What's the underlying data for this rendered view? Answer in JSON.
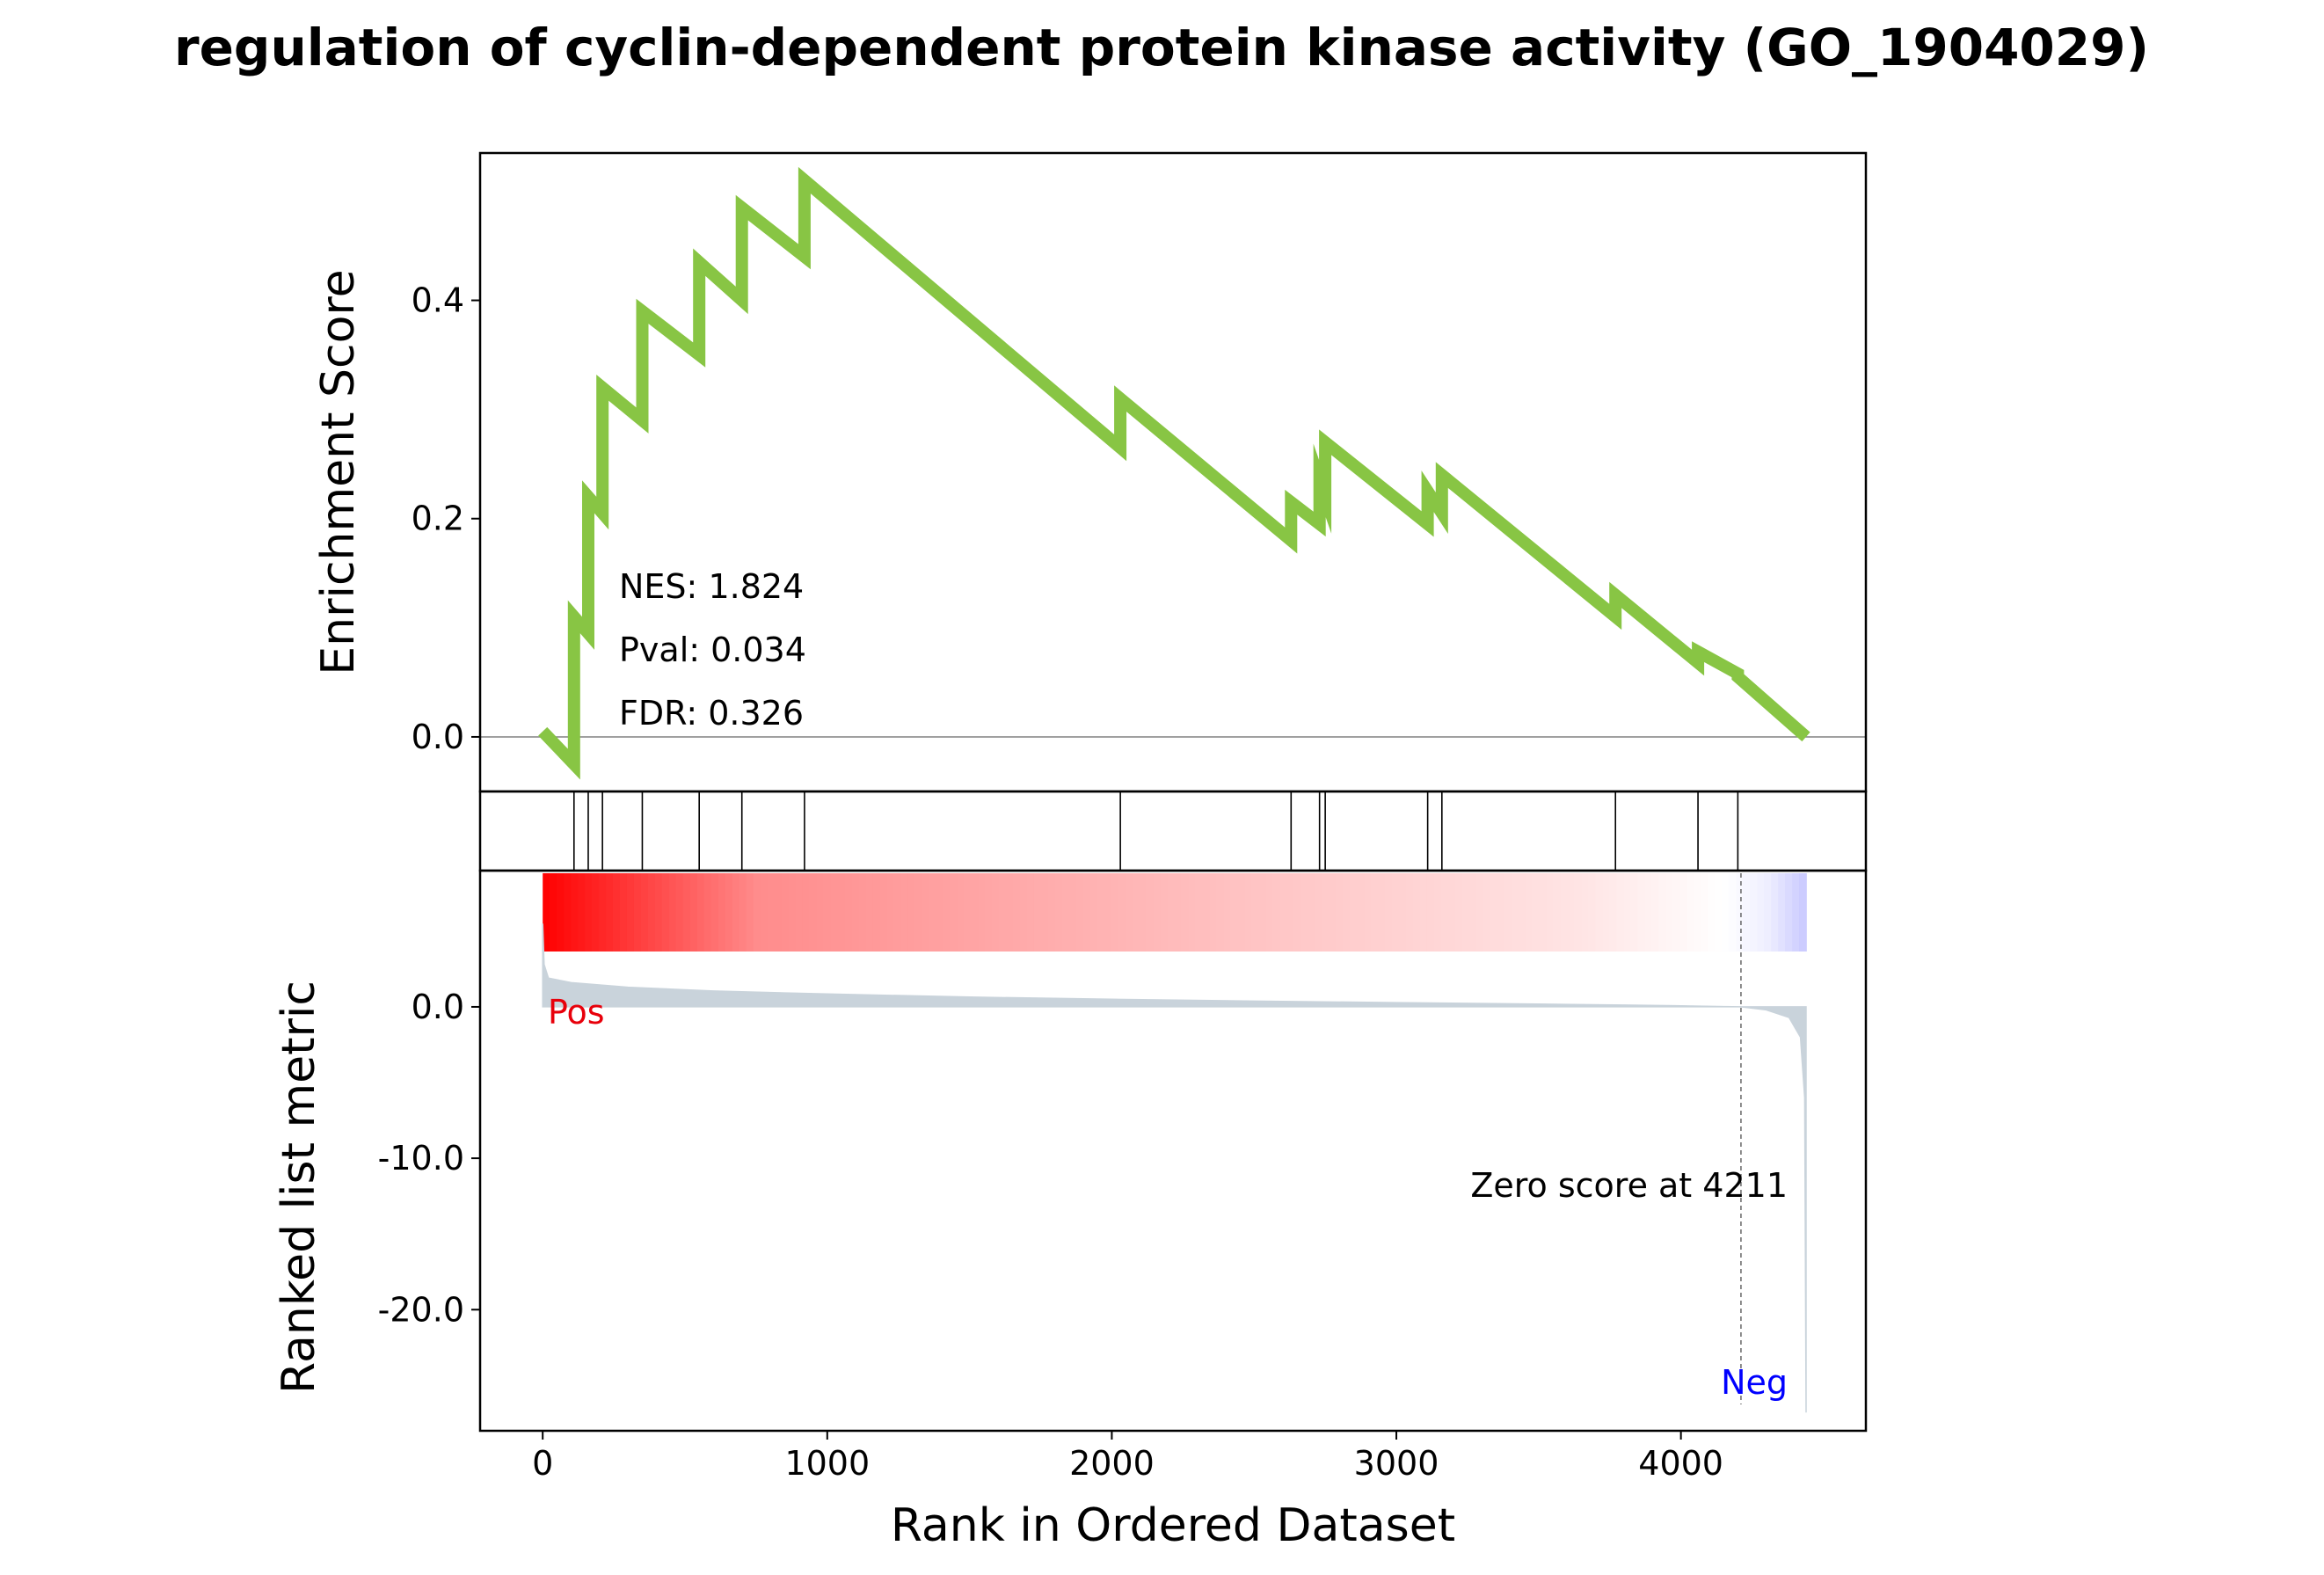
{
  "chart_data": {
    "type": "line",
    "title": "regulation of cyclin-dependent protein kinase activity (GO_1904029)",
    "xlabel": "Rank in Ordered Dataset",
    "x_ticks": [
      0,
      1000,
      2000,
      3000,
      4000
    ],
    "x_tick_labels": [
      "0",
      "1000",
      "2000",
      "3000",
      "4000"
    ],
    "xlim": [
      -220,
      4650
    ],
    "panels": {
      "enrichment": {
        "ylabel": "Enrichment Score",
        "ylim": [
          -0.05,
          0.535
        ],
        "y_ticks": [
          0.0,
          0.2,
          0.4
        ],
        "y_tick_labels": [
          "0.0",
          "0.2",
          "0.4"
        ],
        "line_color": "#88c544",
        "stats": [
          "NES: 1.824",
          "Pval: 0.034",
          "FDR: 0.326"
        ],
        "running_es": {
          "x": [
            0,
            110,
            110,
            160,
            160,
            210,
            210,
            350,
            350,
            550,
            550,
            700,
            700,
            920,
            920,
            2030,
            2030,
            2630,
            2630,
            2730,
            2730,
            2750,
            2750,
            3110,
            3110,
            3160,
            3160,
            3770,
            3770,
            4060,
            4060,
            4200,
            4200,
            4440
          ],
          "y": [
            0.005,
            -0.025,
            0.11,
            0.095,
            0.22,
            0.205,
            0.32,
            0.29,
            0.39,
            0.35,
            0.435,
            0.4,
            0.485,
            0.44,
            0.51,
            0.265,
            0.31,
            0.18,
            0.215,
            0.195,
            0.235,
            0.22,
            0.27,
            0.195,
            0.225,
            0.205,
            0.24,
            0.11,
            0.13,
            0.068,
            0.078,
            0.058,
            0.055,
            0.0
          ]
        }
      },
      "hits": {
        "positions": [
          110,
          160,
          210,
          350,
          550,
          700,
          920,
          2030,
          2630,
          2730,
          2750,
          3110,
          3160,
          3770,
          4060,
          4200
        ]
      },
      "ranked_metric": {
        "ylabel": "Ranked list metric",
        "ylim": [
          -28.0,
          9.0
        ],
        "y_ticks": [
          0.0,
          -10.0,
          -20.0
        ],
        "y_tick_labels": [
          "0.0",
          "-10.0",
          "-20.0"
        ],
        "fill_color": "#c9d3db",
        "pos_label": "Pos",
        "neg_label": "Neg",
        "pos_color": "#e8000b",
        "neg_color": "#0000ff",
        "zero_crossing_rank": 4211,
        "zero_label": "Zero score at 4211",
        "n_genes": 4440,
        "profile": {
          "x": [
            0,
            5,
            20,
            100,
            300,
            600,
            1000,
            1500,
            2000,
            2500,
            3000,
            3500,
            3800,
            4000,
            4150,
            4211,
            4300,
            4380,
            4420,
            4435,
            4440
          ],
          "y": [
            5.5,
            2.8,
            1.9,
            1.6,
            1.3,
            1.05,
            0.85,
            0.65,
            0.5,
            0.38,
            0.28,
            0.18,
            0.12,
            0.07,
            0.02,
            0.0,
            -0.2,
            -0.7,
            -2.0,
            -6.0,
            -26.8
          ]
        }
      }
    },
    "gradient": {
      "colors": [
        "#ff0000",
        "#ff8c8c",
        "#ffc2c2",
        "#ffe4e4",
        "#ffffff",
        "#eeeeff",
        "#c8c8ff"
      ]
    }
  }
}
